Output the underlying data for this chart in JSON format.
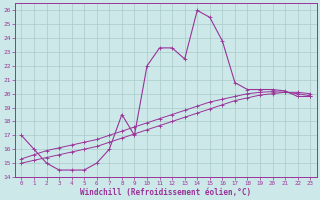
{
  "bg_color": "#cce8e8",
  "grid_color": "#aacccc",
  "line_color": "#993399",
  "xlabel": "Windchill (Refroidissement éolien,°C)",
  "x_ticks": [
    0,
    1,
    2,
    3,
    4,
    5,
    6,
    7,
    8,
    9,
    10,
    11,
    12,
    13,
    14,
    15,
    16,
    17,
    18,
    19,
    20,
    21,
    22,
    23
  ],
  "ylim": [
    14,
    26.5
  ],
  "xlim": [
    -0.5,
    23.5
  ],
  "yticks": [
    14,
    15,
    16,
    17,
    18,
    19,
    20,
    21,
    22,
    23,
    24,
    25,
    26
  ],
  "series1_x": [
    0,
    1,
    2,
    3,
    4,
    5,
    6,
    7,
    8,
    9,
    10,
    11,
    12,
    13,
    14,
    15,
    16,
    17,
    18,
    19,
    20,
    21,
    22,
    23
  ],
  "series1_y": [
    17.0,
    16.0,
    15.0,
    14.5,
    14.5,
    14.5,
    15.0,
    16.0,
    18.5,
    17.0,
    22.0,
    23.3,
    23.3,
    22.5,
    26.0,
    25.5,
    23.8,
    20.8,
    20.3,
    20.3,
    20.3,
    20.2,
    19.8,
    19.8
  ],
  "series2_x": [
    0,
    1,
    2,
    3,
    4,
    5,
    6,
    7,
    8,
    9,
    10,
    11,
    12,
    13,
    14,
    15,
    16,
    17,
    18,
    19,
    20,
    21,
    22,
    23
  ],
  "series2_y": [
    15.0,
    15.2,
    15.4,
    15.6,
    15.8,
    16.0,
    16.2,
    16.5,
    16.8,
    17.1,
    17.4,
    17.7,
    18.0,
    18.3,
    18.6,
    18.9,
    19.2,
    19.5,
    19.7,
    19.9,
    20.0,
    20.1,
    20.1,
    20.0
  ],
  "series3_x": [
    0,
    1,
    2,
    3,
    4,
    5,
    6,
    7,
    8,
    9,
    10,
    11,
    12,
    13,
    14,
    15,
    16,
    17,
    18,
    19,
    20,
    21,
    22,
    23
  ],
  "series3_y": [
    15.3,
    15.6,
    15.9,
    16.1,
    16.3,
    16.5,
    16.7,
    17.0,
    17.3,
    17.6,
    17.9,
    18.2,
    18.5,
    18.8,
    19.1,
    19.4,
    19.6,
    19.8,
    20.0,
    20.1,
    20.15,
    20.1,
    20.0,
    19.85
  ]
}
